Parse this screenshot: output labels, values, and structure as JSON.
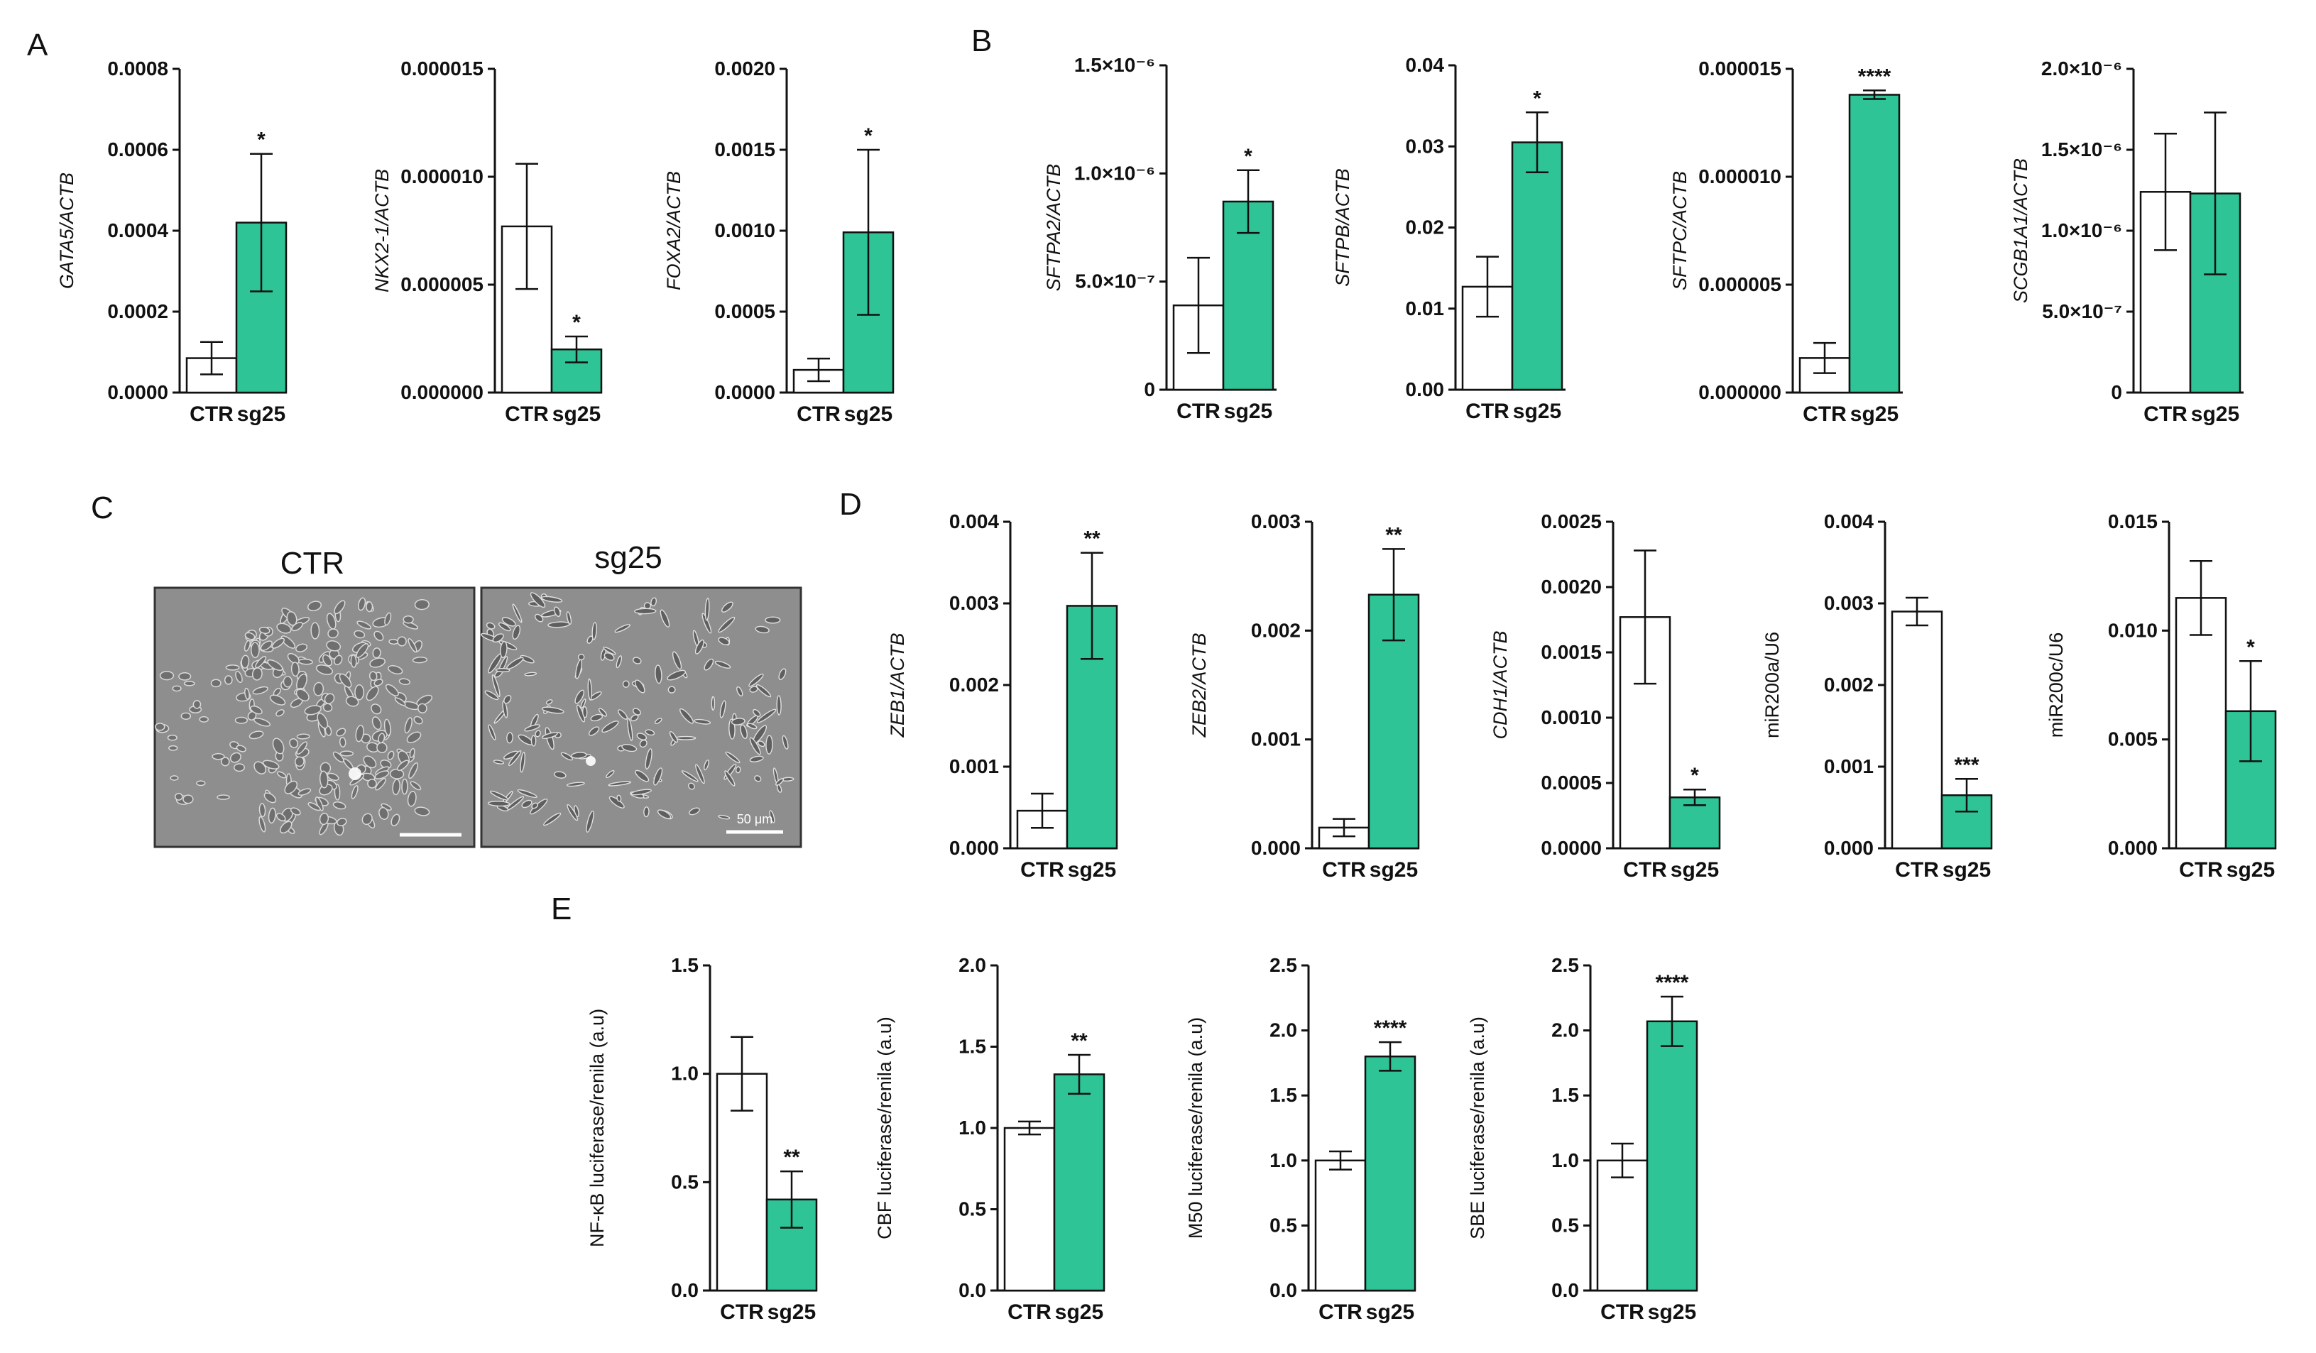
{
  "panel_letters": [
    "A",
    "B",
    "C",
    "D",
    "E"
  ],
  "colors": {
    "ctr_fill": "#ffffff",
    "sg25_fill": "#2ec495",
    "stroke": "#111111"
  },
  "photos": {
    "ctr_title": "CTR",
    "sg25_title": "sg25",
    "scale_bar_label": "50 μm"
  },
  "chart_data": [
    {
      "id": "A1",
      "panel": "A",
      "type": "bar",
      "ylabel": "GATA5/ACTB",
      "ylabel_italic": true,
      "categories": [
        "CTR",
        "sg25"
      ],
      "values": [
        8.5e-05,
        0.00042
      ],
      "errors": [
        4e-05,
        0.00017
      ],
      "significance": [
        "",
        "*"
      ],
      "yticks": [
        "0.0000",
        "0.0002",
        "0.0004",
        "0.0006",
        "0.0008"
      ],
      "ylim": [
        0,
        0.0008
      ]
    },
    {
      "id": "A2",
      "panel": "A",
      "type": "bar",
      "ylabel": "NKX2-1/ACTB",
      "ylabel_italic": true,
      "categories": [
        "CTR",
        "sg25"
      ],
      "values": [
        7.7e-06,
        2e-06
      ],
      "errors": [
        2.9e-06,
        6e-07
      ],
      "significance": [
        "",
        "*"
      ],
      "yticks": [
        "0.000000",
        "0.000005",
        "0.000010",
        "0.000015"
      ],
      "ylim": [
        0,
        1.5e-05
      ]
    },
    {
      "id": "A3",
      "panel": "A",
      "type": "bar",
      "ylabel": "FOXA2/ACTB",
      "ylabel_italic": true,
      "categories": [
        "CTR",
        "sg25"
      ],
      "values": [
        0.00014,
        0.00099
      ],
      "errors": [
        7e-05,
        0.00051
      ],
      "significance": [
        "",
        "*"
      ],
      "yticks": [
        "0.0000",
        "0.0005",
        "0.0010",
        "0.0015",
        "0.0020"
      ],
      "ylim": [
        0,
        0.002
      ]
    },
    {
      "id": "B1",
      "panel": "B",
      "type": "bar",
      "ylabel": "SFTPA2/ACTB",
      "ylabel_italic": true,
      "categories": [
        "CTR",
        "sg25"
      ],
      "values": [
        3.9e-07,
        8.7e-07
      ],
      "errors": [
        2.2e-07,
        1.45e-07
      ],
      "significance": [
        "",
        "*"
      ],
      "yticks": [
        "0",
        "5.0×10⁻⁷",
        "1.0×10⁻⁶",
        "1.5×10⁻⁶"
      ],
      "ylim": [
        0,
        1.5e-06
      ]
    },
    {
      "id": "B2",
      "panel": "B",
      "type": "bar",
      "ylabel": "SFTPB/ACTB",
      "ylabel_italic": true,
      "categories": [
        "CTR",
        "sg25"
      ],
      "values": [
        0.0127,
        0.0305
      ],
      "errors": [
        0.0037,
        0.0037
      ],
      "significance": [
        "",
        "*"
      ],
      "yticks": [
        "0.00",
        "0.01",
        "0.02",
        "0.03",
        "0.04"
      ],
      "ylim": [
        0,
        0.04
      ]
    },
    {
      "id": "B3",
      "panel": "B",
      "type": "bar",
      "ylabel": "SFTPC/ACTB",
      "ylabel_italic": true,
      "categories": [
        "CTR",
        "sg25"
      ],
      "values": [
        1.6e-06,
        1.38e-05
      ],
      "errors": [
        7e-07,
        2e-07
      ],
      "significance": [
        "",
        "****"
      ],
      "yticks": [
        "0.000000",
        "0.000005",
        "0.000010",
        "0.000015"
      ],
      "ylim": [
        0,
        1.5e-05
      ]
    },
    {
      "id": "B4",
      "panel": "B",
      "type": "bar",
      "ylabel": "SCGB1A1/ACTB",
      "ylabel_italic": true,
      "categories": [
        "CTR",
        "sg25"
      ],
      "values": [
        1.24e-06,
        1.23e-06
      ],
      "errors": [
        3.6e-07,
        5e-07
      ],
      "significance": [
        "",
        ""
      ],
      "yticks": [
        "0",
        "5.0×10⁻⁷",
        "1.0×10⁻⁶",
        "1.5×10⁻⁶",
        "2.0×10⁻⁶"
      ],
      "ylim": [
        0,
        2e-06
      ]
    },
    {
      "id": "D1",
      "panel": "D",
      "type": "bar",
      "ylabel": "ZEB1/ACTB",
      "ylabel_italic": true,
      "categories": [
        "CTR",
        "sg25"
      ],
      "values": [
        0.00046,
        0.00297
      ],
      "errors": [
        0.00021,
        0.00065
      ],
      "significance": [
        "",
        "**"
      ],
      "yticks": [
        "0.000",
        "0.001",
        "0.002",
        "0.003",
        "0.004"
      ],
      "ylim": [
        0,
        0.004
      ]
    },
    {
      "id": "D2",
      "panel": "D",
      "type": "bar",
      "ylabel": "ZEB2/ACTB",
      "ylabel_italic": true,
      "categories": [
        "CTR",
        "sg25"
      ],
      "values": [
        0.00019,
        0.00233
      ],
      "errors": [
        8e-05,
        0.00042
      ],
      "significance": [
        "",
        "**"
      ],
      "yticks": [
        "0.000",
        "0.001",
        "0.002",
        "0.003"
      ],
      "ylim": [
        0,
        0.003
      ]
    },
    {
      "id": "D3",
      "panel": "D",
      "type": "bar",
      "ylabel": "CDH1/ACTB",
      "ylabel_italic": true,
      "categories": [
        "CTR",
        "sg25"
      ],
      "values": [
        0.00177,
        0.00039
      ],
      "errors": [
        0.00051,
        6e-05
      ],
      "significance": [
        "",
        "*"
      ],
      "yticks": [
        "0.0000",
        "0.0005",
        "0.0010",
        "0.0015",
        "0.0020",
        "0.0025"
      ],
      "ylim": [
        0,
        0.0025
      ]
    },
    {
      "id": "D4",
      "panel": "D",
      "type": "bar",
      "ylabel": "miR200a/U6",
      "ylabel_italic": false,
      "categories": [
        "CTR",
        "sg25"
      ],
      "values": [
        0.0029,
        0.00065
      ],
      "errors": [
        0.00017,
        0.0002
      ],
      "significance": [
        "",
        "***"
      ],
      "yticks": [
        "0.000",
        "0.001",
        "0.002",
        "0.003",
        "0.004"
      ],
      "ylim": [
        0,
        0.004
      ]
    },
    {
      "id": "D5",
      "panel": "D",
      "type": "bar",
      "ylabel": "miR200c/U6",
      "ylabel_italic": false,
      "categories": [
        "CTR",
        "sg25"
      ],
      "values": [
        0.0115,
        0.0063
      ],
      "errors": [
        0.0017,
        0.0023
      ],
      "significance": [
        "",
        "*"
      ],
      "yticks": [
        "0.000",
        "0.005",
        "0.010",
        "0.015"
      ],
      "ylim": [
        0,
        0.015
      ]
    },
    {
      "id": "E1",
      "panel": "E",
      "type": "bar",
      "ylabel": "NF-κB luciferase/renila (a.u)",
      "ylabel_italic": false,
      "categories": [
        "CTR",
        "sg25"
      ],
      "values": [
        1.0,
        0.42
      ],
      "errors": [
        0.17,
        0.13
      ],
      "significance": [
        "",
        "**"
      ],
      "yticks": [
        "0.0",
        "0.5",
        "1.0",
        "1.5"
      ],
      "ylim": [
        0,
        1.5
      ]
    },
    {
      "id": "E2",
      "panel": "E",
      "type": "bar",
      "ylabel": "CBF luciferase/renila (a.u)",
      "ylabel_italic": false,
      "categories": [
        "CTR",
        "sg25"
      ],
      "values": [
        1.0,
        1.33
      ],
      "errors": [
        0.04,
        0.12
      ],
      "significance": [
        "",
        "**"
      ],
      "yticks": [
        "0.0",
        "0.5",
        "1.0",
        "1.5",
        "2.0"
      ],
      "ylim": [
        0,
        2.0
      ]
    },
    {
      "id": "E3",
      "panel": "E",
      "type": "bar",
      "ylabel": "M50 luciferase/renila (a.u)",
      "ylabel_italic": false,
      "categories": [
        "CTR",
        "sg25"
      ],
      "values": [
        1.0,
        1.8
      ],
      "errors": [
        0.07,
        0.11
      ],
      "significance": [
        "",
        "****"
      ],
      "yticks": [
        "0.0",
        "0.5",
        "1.0",
        "1.5",
        "2.0",
        "2.5"
      ],
      "ylim": [
        0,
        2.5
      ]
    },
    {
      "id": "E4",
      "panel": "E",
      "type": "bar",
      "ylabel": "SBE luciferase/renila (a.u)",
      "ylabel_italic": false,
      "categories": [
        "CTR",
        "sg25"
      ],
      "values": [
        1.0,
        2.07
      ],
      "errors": [
        0.13,
        0.19
      ],
      "significance": [
        "",
        "****"
      ],
      "yticks": [
        "0.0",
        "0.5",
        "1.0",
        "1.5",
        "2.0",
        "2.5"
      ],
      "ylim": [
        0,
        2.5
      ]
    }
  ]
}
